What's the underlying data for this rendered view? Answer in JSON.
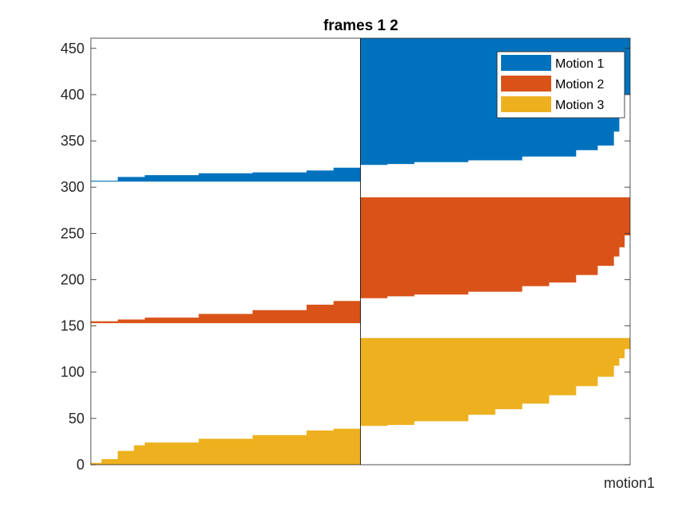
{
  "chart_data": {
    "type": "area",
    "title": "frames 1 2",
    "xlabel": "motion1",
    "ylabel": "",
    "ylim": [
      0,
      461
    ],
    "yticks": [
      0,
      50,
      100,
      150,
      200,
      250,
      300,
      350,
      400,
      450
    ],
    "ytick_labels": [
      "0",
      "50",
      "100",
      "150",
      "200",
      "250",
      "300",
      "350",
      "400",
      "450"
    ],
    "xlim": [
      0,
      1
    ],
    "divider_x": 0.5,
    "grid": false,
    "legend_position": "top-right",
    "series": [
      {
        "name": "Motion 1",
        "color": "#0072BD",
        "segments": [
          {
            "base": 306,
            "x": [
              0,
              0.05,
              0.1,
              0.2,
              0.3,
              0.4,
              0.45,
              0.5
            ],
            "y": [
              307,
              311,
              313,
              315,
              316,
              318,
              321,
              324
            ]
          },
          {
            "base": 461,
            "x": [
              0.5,
              0.55,
              0.6,
              0.7,
              0.8,
              0.9,
              0.94,
              0.97,
              0.98,
              0.99,
              1.0
            ],
            "y": [
              324,
              325,
              327,
              329,
              333,
              340,
              345,
              360,
              375,
              400,
              455
            ]
          }
        ]
      },
      {
        "name": "Motion 2",
        "color": "#D95319",
        "segments": [
          {
            "base": 153,
            "x": [
              0,
              0.05,
              0.1,
              0.2,
              0.3,
              0.4,
              0.45,
              0.5
            ],
            "y": [
              155,
              157,
              159,
              163,
              167,
              173,
              177,
              180
            ]
          },
          {
            "base": 289,
            "x": [
              0.5,
              0.55,
              0.6,
              0.7,
              0.8,
              0.85,
              0.9,
              0.94,
              0.97,
              0.98,
              0.99,
              1.0
            ],
            "y": [
              180,
              182,
              184,
              187,
              193,
              197,
              205,
              215,
              225,
              235,
              248,
              265
            ]
          }
        ]
      },
      {
        "name": "Motion 3",
        "color": "#EDB120",
        "segments": [
          {
            "base": 0,
            "x": [
              0,
              0.02,
              0.05,
              0.08,
              0.1,
              0.2,
              0.3,
              0.4,
              0.45,
              0.5
            ],
            "y": [
              2,
              6,
              15,
              21,
              24,
              28,
              32,
              37,
              39,
              41
            ],
            "step": true
          },
          {
            "base": 137,
            "x": [
              0.5,
              0.55,
              0.6,
              0.7,
              0.75,
              0.8,
              0.85,
              0.9,
              0.94,
              0.97,
              0.98,
              0.99,
              1.0
            ],
            "y": [
              42,
              43,
              47,
              54,
              60,
              66,
              75,
              85,
              95,
              107,
              115,
              125,
              135
            ]
          }
        ]
      }
    ]
  }
}
